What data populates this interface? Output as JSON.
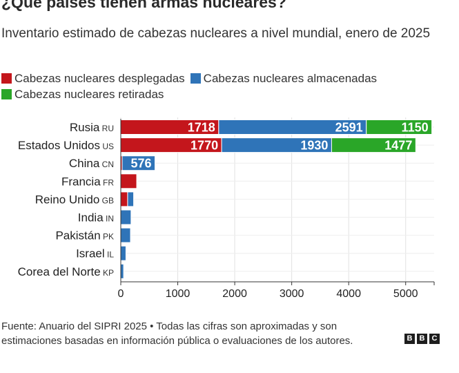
{
  "header": {
    "title": "¿Qué países tienen armas nucleares?",
    "subtitle": "Inventario estimado de cabezas nucleares a nivel mundial, enero de 2025"
  },
  "legend": [
    {
      "label": "Cabezas nucleares desplegadas",
      "color": "#c4161c"
    },
    {
      "label": "Cabezas nucleares almacenadas",
      "color": "#2f74b8"
    },
    {
      "label": "Cabezas nucleares retiradas",
      "color": "#2aa628"
    }
  ],
  "chart_data": {
    "type": "bar",
    "orientation": "horizontal",
    "stacked": true,
    "title": "¿Qué países tienen armas nucleares?",
    "categories": [
      "Rusia",
      "Estados Unidos",
      "China",
      "Francia",
      "Reino Unido",
      "India",
      "Pakistán",
      "Israel",
      "Corea del Norte"
    ],
    "country_codes": [
      "RU",
      "US",
      "CN",
      "FR",
      "GB",
      "IN",
      "PK",
      "IL",
      "KP"
    ],
    "series": [
      {
        "name": "Cabezas nucleares desplegadas",
        "color": "#c4161c",
        "values": [
          1718,
          1770,
          24,
          280,
          120,
          0,
          0,
          0,
          0
        ]
      },
      {
        "name": "Cabezas nucleares almacenadas",
        "color": "#2f74b8",
        "values": [
          2591,
          1930,
          576,
          10,
          105,
          180,
          170,
          90,
          50
        ]
      },
      {
        "name": "Cabezas nucleares retiradas",
        "color": "#2aa628",
        "values": [
          1150,
          1477,
          0,
          0,
          0,
          0,
          0,
          0,
          0
        ]
      }
    ],
    "data_labels": [
      [
        "1718",
        "2591",
        "1150"
      ],
      [
        "1770",
        "1930",
        "1477"
      ],
      [
        null,
        "576",
        null
      ],
      [
        null,
        null,
        null
      ],
      [
        null,
        null,
        null
      ],
      [
        null,
        null,
        null
      ],
      [
        null,
        null,
        null
      ],
      [
        null,
        null,
        null
      ],
      [
        null,
        null,
        null
      ]
    ],
    "xlim": [
      0,
      5500
    ],
    "xticks": [
      0,
      1000,
      2000,
      3000,
      4000,
      5000
    ],
    "xtick_labels": [
      "0",
      "1000",
      "2000",
      "3000",
      "4000",
      "5000"
    ],
    "grid": true,
    "legend_position": "top-left"
  },
  "footer": {
    "source": "Fuente: Anuario del SIPRI 2025 • Todas las cifras son aproximadas y son estimaciones basadas en información pública o evaluaciones de los autores.",
    "logo_letters": [
      "B",
      "B",
      "C"
    ]
  }
}
